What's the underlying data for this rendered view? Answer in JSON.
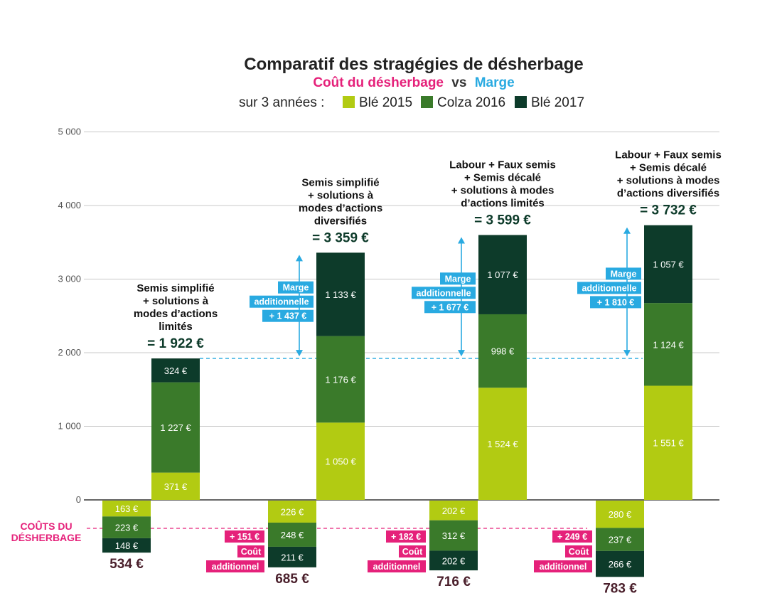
{
  "chart_data": {
    "type": "bar",
    "title": "Comparatif des stragégies de désherbage",
    "subtitle": {
      "cost_label": "Coût du désherbage",
      "vs_label": "vs",
      "margin_label": "Marge"
    },
    "legend_prefix": "sur 3 années :",
    "legend": [
      {
        "name": "Blé 2015",
        "color": "#b2cb12"
      },
      {
        "name": "Colza 2016",
        "color": "#3a7a2a"
      },
      {
        "name": "Blé 2017",
        "color": "#0d3b2a"
      }
    ],
    "y_ticks": [
      "5 000",
      "4 000",
      "3 000",
      "2 000",
      "1 000",
      "0"
    ],
    "y_tick_values": [
      5000,
      4000,
      3000,
      2000,
      1000,
      0
    ],
    "ylim": [
      -650,
      5000
    ],
    "grid": true,
    "cost_axis_label": [
      "COÛTS DU",
      "DÉSHERBAGE"
    ],
    "strategies": [
      {
        "title_lines": [
          "Semis simplifié",
          "+ solutions à",
          "modes d’actions",
          "limités"
        ],
        "total_label": "= 1 922 €",
        "margin": [
          {
            "value": 371,
            "label": "371 €"
          },
          {
            "value": 1227,
            "label": "1 227 €"
          },
          {
            "value": 324,
            "label": "324 €"
          }
        ],
        "cost": [
          {
            "value": 163,
            "label": "163 €"
          },
          {
            "value": 223,
            "label": "223 €"
          },
          {
            "value": 148,
            "label": "148 €"
          }
        ],
        "cost_total_label": "534 €",
        "extra_margin": null,
        "extra_cost": null
      },
      {
        "title_lines": [
          "Semis simplifié",
          "+ solutions à",
          "modes d’actions",
          "diversifiés"
        ],
        "total_label": "= 3 359 €",
        "margin": [
          {
            "value": 1050,
            "label": "1 050 €"
          },
          {
            "value": 1176,
            "label": "1 176 €"
          },
          {
            "value": 1133,
            "label": "1 133 €"
          }
        ],
        "cost": [
          {
            "value": 226,
            "label": "226 €"
          },
          {
            "value": 248,
            "label": "248 €"
          },
          {
            "value": 211,
            "label": "211 €"
          }
        ],
        "cost_total_label": "685 €",
        "extra_margin": [
          "Marge",
          "additionnelle",
          "+ 1 437 €"
        ],
        "extra_cost": [
          "+ 151 €",
          "Coût",
          "additionnel"
        ]
      },
      {
        "title_lines": [
          "Labour + Faux semis",
          "+ Semis décalé",
          "+ solutions à modes",
          "d’actions limités"
        ],
        "total_label": "= 3 599 €",
        "margin": [
          {
            "value": 1524,
            "label": "1 524 €"
          },
          {
            "value": 998,
            "label": "998 €"
          },
          {
            "value": 1077,
            "label": "1 077 €"
          }
        ],
        "cost": [
          {
            "value": 202,
            "label": "202 €"
          },
          {
            "value": 312,
            "label": "312 €"
          },
          {
            "value": 202,
            "label": "202 €"
          }
        ],
        "cost_total_label": "716 €",
        "extra_margin": [
          "Marge",
          "additionnelle",
          "+ 1 677 €"
        ],
        "extra_cost": [
          "+ 182 €",
          "Coût",
          "additionnel"
        ]
      },
      {
        "title_lines": [
          "Labour + Faux semis",
          "+ Semis décalé",
          "+ solutions à modes",
          "d’actions diversifiés"
        ],
        "total_label": "= 3 732 €",
        "margin": [
          {
            "value": 1551,
            "label": "1 551 €"
          },
          {
            "value": 1124,
            "label": "1 124 €"
          },
          {
            "value": 1057,
            "label": "1 057 €"
          }
        ],
        "cost": [
          {
            "value": 280,
            "label": "280 €"
          },
          {
            "value": 237,
            "label": "237 €"
          },
          {
            "value": 266,
            "label": "266 €"
          }
        ],
        "cost_total_label": "783 €",
        "extra_margin": [
          "Marge",
          "additionnelle",
          "+ 1 810 €"
        ],
        "extra_cost": [
          "+ 249 €",
          "Coût",
          "additionnel"
        ]
      }
    ],
    "colors": {
      "cost_accent": "#e5217a",
      "margin_accent": "#29aae1",
      "cost_total_text": "#4a1f2b",
      "total_text": "#0d3b2a",
      "title_text": "#222222",
      "grid": "#c8c8c8"
    }
  }
}
